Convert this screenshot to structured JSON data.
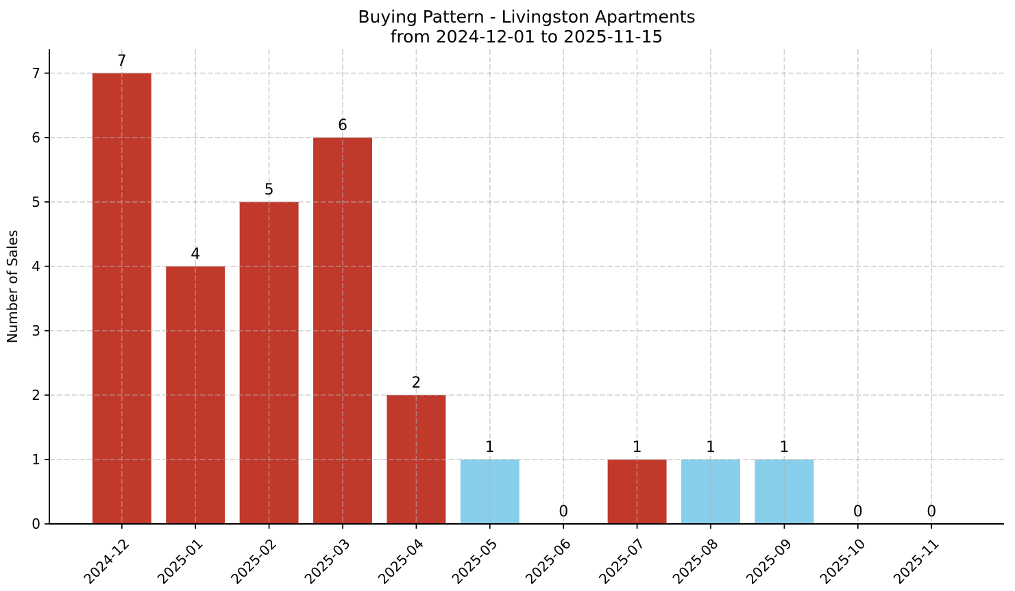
{
  "chart_data": {
    "type": "bar",
    "title": "Buying Pattern - Livingston Apartments",
    "subtitle": "from 2024-12-01 to 2025-11-15",
    "xlabel": "",
    "ylabel": "Number of Sales",
    "categories": [
      "2024-12",
      "2025-01",
      "2025-02",
      "2025-03",
      "2025-04",
      "2025-05",
      "2025-06",
      "2025-07",
      "2025-08",
      "2025-09",
      "2025-10",
      "2025-11"
    ],
    "values": [
      7,
      4,
      5,
      6,
      2,
      1,
      0,
      1,
      1,
      1,
      0,
      0
    ],
    "value_labels": [
      "7",
      "4",
      "5",
      "6",
      "2",
      "1",
      "0",
      "1",
      "1",
      "1",
      "0",
      "0"
    ],
    "bar_colors": [
      "#c0392b",
      "#c0392b",
      "#c0392b",
      "#c0392b",
      "#c0392b",
      "#87ceeb",
      "#c0392b",
      "#c0392b",
      "#87ceeb",
      "#87ceeb",
      "#c0392b",
      "#c0392b"
    ],
    "yticks": [
      0,
      1,
      2,
      3,
      4,
      5,
      6,
      7
    ],
    "ylim": [
      0,
      7.37
    ],
    "x_tick_rotation_deg": 45,
    "grid": {
      "visible": true,
      "linestyle": "dashed",
      "which": "both"
    },
    "legend": "none",
    "colors": {
      "bar_red": "#c0392b",
      "bar_blue": "#87ceeb",
      "grid": "#b0b0b0",
      "axis": "#000000",
      "text": "#000000",
      "background": "#ffffff"
    }
  }
}
